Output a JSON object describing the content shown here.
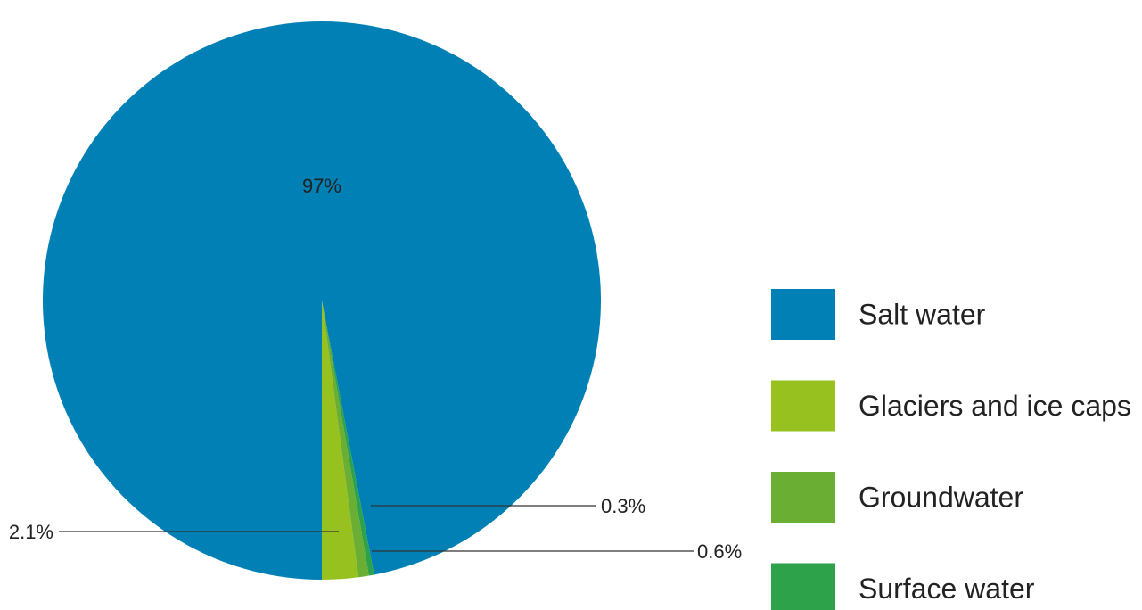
{
  "chart_data": {
    "type": "pie",
    "title": "",
    "legend_position": "right",
    "slices": [
      {
        "label": "Salt water",
        "value": 97,
        "value_label": "97%",
        "color": "#0080b4"
      },
      {
        "label": "Glaciers and ice caps",
        "value": 2.1,
        "value_label": "2.1%",
        "color": "#97c11f"
      },
      {
        "label": "Groundwater",
        "value": 0.6,
        "value_label": "0.6%",
        "color": "#6aae34"
      },
      {
        "label": "Surface water",
        "value": 0.3,
        "value_label": "0.3%",
        "color": "#2ea24a"
      }
    ]
  }
}
